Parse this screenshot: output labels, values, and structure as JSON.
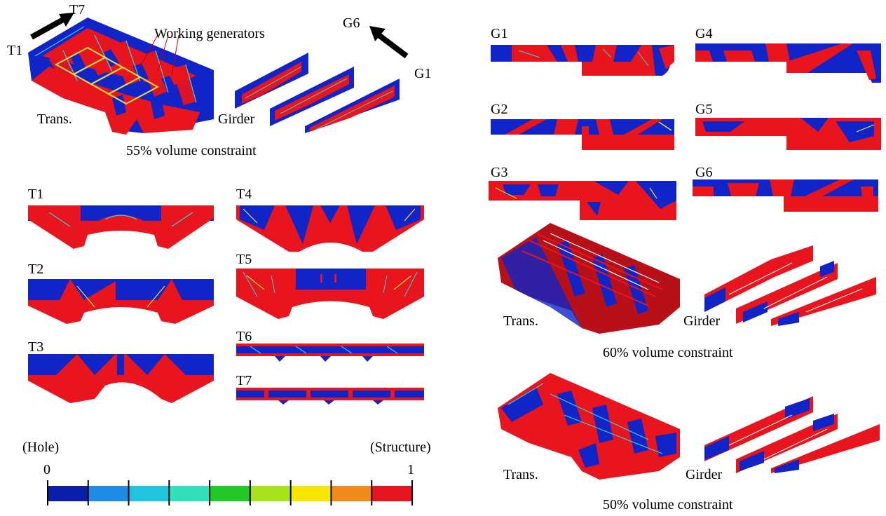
{
  "top_left": {
    "arrow_labels": {
      "start": "T1",
      "end": "T7"
    },
    "working_generators": "Working generators",
    "trans_label": "Trans.",
    "girder_label": "Girder",
    "girder_arrow_labels": {
      "start": "G1",
      "end": "G6"
    },
    "caption": "55% volume constraint"
  },
  "transverse_sections": [
    "T1",
    "T2",
    "T3",
    "T4",
    "T5",
    "T6",
    "T7"
  ],
  "girder_sections": [
    "G1",
    "G2",
    "G3",
    "G4",
    "G5",
    "G6"
  ],
  "right_60": {
    "trans_label": "Trans.",
    "girder_label": "Girder",
    "caption": "60% volume constraint"
  },
  "right_50": {
    "trans_label": "Trans.",
    "girder_label": "Girder",
    "caption": "50% volume constraint"
  },
  "colorbar": {
    "left_label": "(Hole)",
    "right_label": "(Structure)",
    "min": "0",
    "max": "1",
    "colors": [
      "#0b1ea8",
      "#1e8be6",
      "#22c3dd",
      "#34e0b9",
      "#22c82a",
      "#a6e31c",
      "#f5e600",
      "#f08a1c",
      "#e8141e"
    ]
  },
  "colors": {
    "structure": "#e8141e",
    "hole": "#1024c8",
    "edge_yellow": "#e8e040",
    "edge_cyan": "#38d0d8"
  }
}
